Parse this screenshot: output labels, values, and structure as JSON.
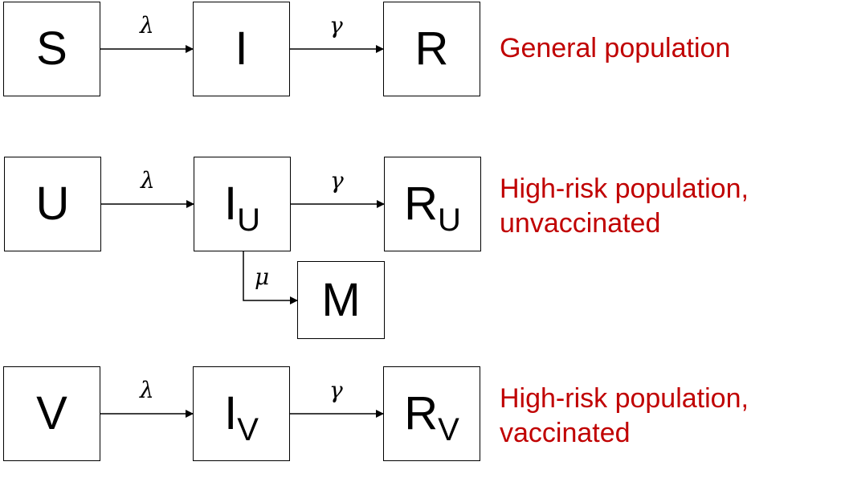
{
  "rows": {
    "general": {
      "boxes": [
        {
          "main": "S",
          "sub": ""
        },
        {
          "main": "I",
          "sub": ""
        },
        {
          "main": "R",
          "sub": ""
        }
      ],
      "rates": [
        "λ",
        "γ"
      ],
      "description": [
        "General population"
      ]
    },
    "unvaccinated": {
      "boxes": [
        {
          "main": "U",
          "sub": ""
        },
        {
          "main": "I",
          "sub": "U"
        },
        {
          "main": "R",
          "sub": "U"
        }
      ],
      "rates": [
        "λ",
        "γ"
      ],
      "branch": {
        "rate": "μ",
        "box": {
          "main": "M",
          "sub": ""
        }
      },
      "description": [
        "High-risk population,",
        "unvaccinated"
      ]
    },
    "vaccinated": {
      "boxes": [
        {
          "main": "V",
          "sub": ""
        },
        {
          "main": "I",
          "sub": "V"
        },
        {
          "main": "R",
          "sub": "V"
        }
      ],
      "rates": [
        "λ",
        "γ"
      ],
      "description": [
        "High-risk population,",
        "vaccinated"
      ]
    }
  },
  "colors": {
    "description": "#c00000",
    "lines": "#000000"
  }
}
